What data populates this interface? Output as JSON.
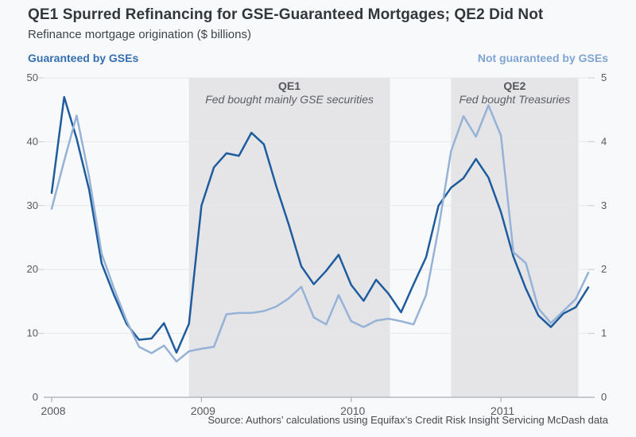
{
  "header": {
    "title": "QE1 Spurred Refinancing for GSE-Guaranteed Mortgages; QE2 Did Not",
    "subtitle": "Refinance mortgage origination ($ billions)"
  },
  "legend": {
    "left_label": "Guaranteed by GSEs",
    "right_label": "Not guaranteed by GSEs"
  },
  "footer": {
    "source": "Source: Authors’ calculations using Equifax’s Credit Risk Insight Servicing McDash data"
  },
  "colors": {
    "gse_line": "#1e5c9e",
    "non_gse_line": "#96b2d6",
    "band": "#e5e5e8",
    "grid": "#e7e8eb",
    "axis": "#a9adb3",
    "tick": "#c9ccd1",
    "background": "#f8f9fb"
  },
  "chart_data": {
    "type": "line",
    "title": "QE1 Spurred Refinancing for GSE-Guaranteed Mortgages; QE2 Did Not",
    "subtitle": "Refinance mortgage origination ($ billions)",
    "x_unit": "month",
    "x_start": "2008-01",
    "x_end": "2011-08",
    "x_tick_labels": [
      "2008",
      "2009",
      "2010",
      "2011"
    ],
    "x_tick_indices": [
      0,
      12,
      24,
      36
    ],
    "grid": true,
    "left_axis": {
      "title": "Guaranteed by GSEs",
      "range": [
        0,
        50
      ],
      "ticks": [
        0,
        10,
        20,
        30,
        40,
        50
      ]
    },
    "right_axis": {
      "title": "Not guaranteed by GSEs",
      "range": [
        0,
        5
      ],
      "ticks": [
        0,
        1,
        2,
        3,
        4,
        5
      ]
    },
    "series": [
      {
        "name": "Guaranteed by GSEs",
        "axis": "left",
        "color": "#1e5c9e",
        "values": [
          32,
          47,
          40.5,
          32.5,
          21,
          16,
          11.5,
          9,
          9.2,
          11.6,
          7,
          11.5,
          30,
          36,
          38.2,
          37.8,
          41.4,
          39.6,
          33,
          27,
          20.5,
          17.7,
          19.8,
          22.3,
          17.6,
          15.1,
          18.4,
          16.2,
          13.3,
          17.7,
          21.9,
          30,
          32.8,
          34.3,
          37.3,
          34.4,
          29,
          22,
          17,
          12.8,
          11,
          13.1,
          14.1,
          17.2
        ]
      },
      {
        "name": "Not guaranteed by GSEs",
        "axis": "right",
        "color": "#96b2d6",
        "values": [
          2.95,
          3.7,
          4.41,
          3.45,
          2.25,
          1.7,
          1.2,
          0.79,
          0.69,
          0.81,
          0.56,
          0.72,
          0.76,
          0.79,
          1.3,
          1.32,
          1.32,
          1.35,
          1.42,
          1.55,
          1.73,
          1.25,
          1.14,
          1.6,
          1.19,
          1.1,
          1.2,
          1.23,
          1.19,
          1.14,
          1.6,
          2.64,
          3.85,
          4.4,
          4.08,
          4.57,
          4.1,
          2.27,
          2.1,
          1.39,
          1.16,
          1.35,
          1.54,
          1.95
        ]
      }
    ],
    "bands": [
      {
        "label": "QE1",
        "sublabel": "Fed bought mainly GSE securities",
        "from_index": 11,
        "to_index": 27.1
      },
      {
        "label": "QE2",
        "sublabel": "Fed bought Treasuries",
        "from_index": 32,
        "to_index": 42.2
      }
    ]
  }
}
